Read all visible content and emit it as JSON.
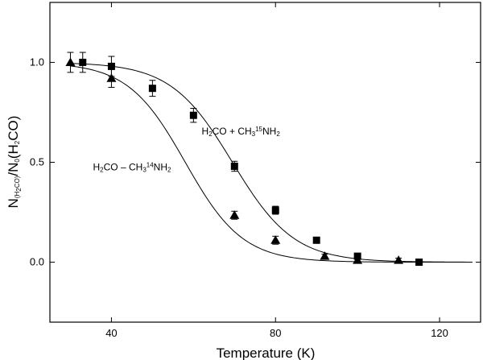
{
  "chart_data": {
    "type": "scatter",
    "title": "",
    "xlabel": "Temperature (K)",
    "ylabel": {
      "parts": [
        {
          "text": "N",
          "style": "normal"
        },
        {
          "text": "(H",
          "style": "sub"
        },
        {
          "text": "2",
          "style": "subsub"
        },
        {
          "text": "CO)",
          "style": "sub"
        },
        {
          "text": "/N",
          "style": "normal"
        },
        {
          "text": "0",
          "style": "sub"
        },
        {
          "text": "(H",
          "style": "normal"
        },
        {
          "text": "2",
          "style": "sub"
        },
        {
          "text": "CO)",
          "style": "normal"
        }
      ]
    },
    "xlim": [
      25,
      130
    ],
    "ylim": [
      -0.3,
      1.3
    ],
    "xticks": [
      40,
      80,
      120
    ],
    "yticks": [
      0.0,
      0.5,
      1.0
    ],
    "grid": false,
    "legend": "none",
    "series": [
      {
        "marker": "square",
        "points": [
          {
            "x": 33,
            "y": 1.0,
            "err": 0.05
          },
          {
            "x": 40,
            "y": 0.98,
            "err": 0.05
          },
          {
            "x": 50,
            "y": 0.87,
            "err": 0.04
          },
          {
            "x": 60,
            "y": 0.735,
            "err": 0.035
          },
          {
            "x": 70,
            "y": 0.48,
            "err": 0.025
          },
          {
            "x": 80,
            "y": 0.26,
            "err": 0.02
          },
          {
            "x": 90,
            "y": 0.11,
            "err": 0.015
          },
          {
            "x": 100,
            "y": 0.03,
            "err": 0.01
          },
          {
            "x": 115,
            "y": 0.0,
            "err": 0.0
          }
        ],
        "fit": {
          "T50": 69.5,
          "width": 7.5
        }
      },
      {
        "marker": "triangle",
        "points": [
          {
            "x": 30,
            "y": 1.0,
            "err": 0.05
          },
          {
            "x": 40,
            "y": 0.92,
            "err": 0.045
          },
          {
            "x": 70,
            "y": 0.235,
            "err": 0.02
          },
          {
            "x": 80,
            "y": 0.11,
            "err": 0.02
          },
          {
            "x": 92,
            "y": 0.03,
            "err": 0.01
          },
          {
            "x": 100,
            "y": 0.01,
            "err": 0.01
          },
          {
            "x": 110,
            "y": 0.01,
            "err": 0.01
          }
        ],
        "fit": {
          "T50": 58.0,
          "width": 7.0
        }
      }
    ],
    "annotations": [
      {
        "id": "label-15",
        "x": 62,
        "y": 0.64,
        "parts": [
          {
            "text": "H",
            "style": "normal"
          },
          {
            "text": "2",
            "style": "sub"
          },
          {
            "text": "CO + CH",
            "style": "normal"
          },
          {
            "text": "3",
            "style": "sub"
          },
          {
            "text": "15",
            "style": "sup"
          },
          {
            "text": "NH",
            "style": "normal"
          },
          {
            "text": "2",
            "style": "sub"
          }
        ]
      },
      {
        "id": "label-14",
        "x": 35.5,
        "y": 0.46,
        "parts": [
          {
            "text": "H",
            "style": "normal"
          },
          {
            "text": "2",
            "style": "sub"
          },
          {
            "text": "CO – CH",
            "style": "normal"
          },
          {
            "text": "3",
            "style": "sub"
          },
          {
            "text": "14",
            "style": "sup"
          },
          {
            "text": "NH",
            "style": "normal"
          },
          {
            "text": "2",
            "style": "sub"
          }
        ]
      }
    ]
  }
}
